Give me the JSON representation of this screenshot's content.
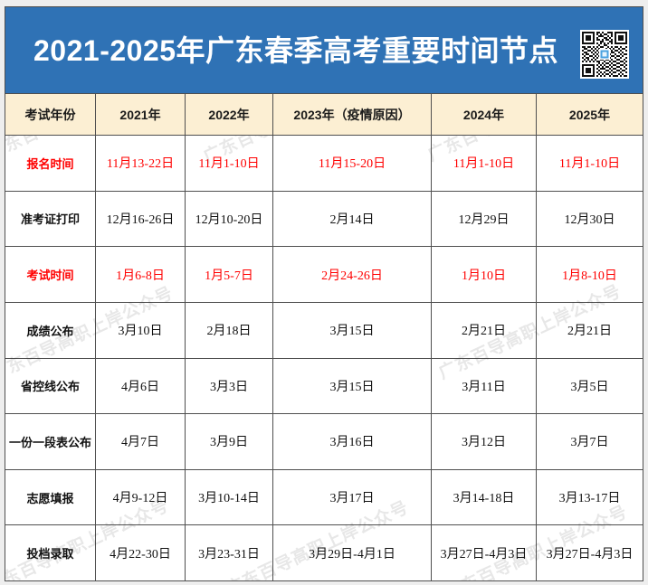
{
  "title": "2021-2025年广东春季高考重要时间节点",
  "qr_code": {
    "icon": "qr-code-icon"
  },
  "watermark": "广东百导高职上岸公众号",
  "colors": {
    "title_background": "#2F72B5",
    "title_text": "#FFFFFF",
    "header_background": "#FCEFD3",
    "highlight_text": "#FF0000",
    "grid_line": "#4F4F4F"
  },
  "table": {
    "header": [
      "考试年份",
      "2021年",
      "2022年",
      "2023年（疫情原因）",
      "2024年",
      "2025年"
    ],
    "rows": [
      {
        "label": "报名时间",
        "highlight": true,
        "values": [
          "11月13-22日",
          "11月1-10日",
          "11月15-20日",
          "11月1-10日",
          "11月1-10日"
        ]
      },
      {
        "label": "准考证打印",
        "highlight": false,
        "values": [
          "12月16-26日",
          "12月10-20日",
          "2月14日",
          "12月29日",
          "12月30日"
        ]
      },
      {
        "label": "考试时间",
        "highlight": true,
        "values": [
          "1月6-8日",
          "1月5-7日",
          "2月24-26日",
          "1月10日",
          "1月8-10日"
        ]
      },
      {
        "label": "成绩公布",
        "highlight": false,
        "values": [
          "3月10日",
          "2月18日",
          "3月15日",
          "2月21日",
          "2月21日"
        ]
      },
      {
        "label": "省控线公布",
        "highlight": false,
        "values": [
          "4月6日",
          "3月3日",
          "3月15日",
          "3月11日",
          "3月5日"
        ]
      },
      {
        "label": "一份一段表公布",
        "highlight": false,
        "values": [
          "4月7日",
          "3月9日",
          "3月16日",
          "3月12日",
          "3月7日"
        ]
      },
      {
        "label": "志愿填报",
        "highlight": false,
        "values": [
          "4月9-12日",
          "3月10-14日",
          "3月17日",
          "3月14-18日",
          "3月13-17日"
        ]
      },
      {
        "label": "投档录取",
        "highlight": false,
        "values": [
          "4月22-30日",
          "3月23-31日",
          "3月29日-4月1日",
          "3月27日-4月3日",
          "3月27日-4月3日"
        ]
      }
    ]
  }
}
